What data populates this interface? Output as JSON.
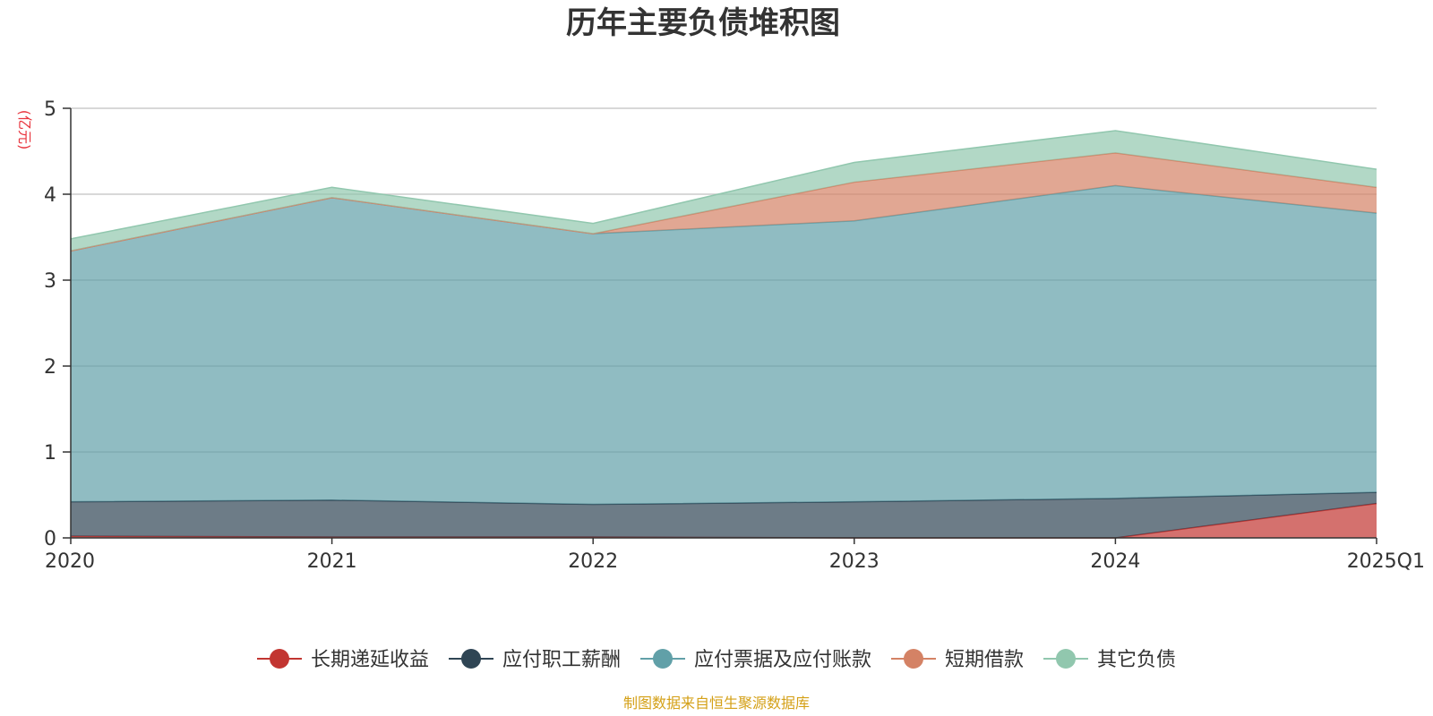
{
  "chart_data": {
    "type": "area",
    "title": "历年主要负债堆积图",
    "unit": "(亿元)",
    "categories": [
      "2020",
      "2021",
      "2022",
      "2023",
      "2024",
      "2025Q1"
    ],
    "ylim": [
      0,
      5
    ],
    "yticks": [
      "0",
      "1",
      "2",
      "3",
      "4",
      "5"
    ],
    "stacked": true,
    "grid": true,
    "legend_position": "bottom",
    "series": [
      {
        "name": "长期递延收益",
        "color": "#c23531",
        "values": [
          0.02,
          0.01,
          0.01,
          0.0,
          0.0,
          0.4
        ]
      },
      {
        "name": "应付职工薪酬",
        "color": "#2f4554",
        "values": [
          0.4,
          0.43,
          0.38,
          0.42,
          0.46,
          0.13
        ]
      },
      {
        "name": "应付票据及应付账款",
        "color": "#61a0a8",
        "values": [
          2.92,
          3.52,
          3.15,
          3.27,
          3.64,
          3.25
        ]
      },
      {
        "name": "短期借款",
        "color": "#d48265",
        "values": [
          0.0,
          0.0,
          0.0,
          0.45,
          0.38,
          0.3
        ]
      },
      {
        "name": "其它负债",
        "color": "#91c7ae",
        "values": [
          0.14,
          0.12,
          0.12,
          0.23,
          0.26,
          0.21
        ]
      }
    ],
    "source": "制图数据来自恒生聚源数据库"
  }
}
